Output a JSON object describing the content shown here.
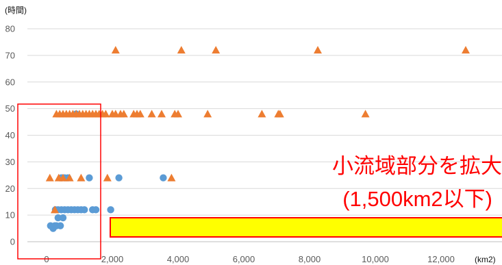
{
  "chart_data": {
    "type": "scatter",
    "y_unit_label": "(時間)",
    "x_unit_label": "(km2)",
    "xlim": [
      0,
      14000
    ],
    "ylim": [
      0,
      80
    ],
    "x_ticks": [
      "0",
      "2,000",
      "4,000",
      "6,000",
      "8,000",
      "10,000",
      "12,000"
    ],
    "y_ticks": [
      "0",
      "10",
      "20",
      "30",
      "40",
      "50",
      "60",
      "70",
      "80"
    ],
    "grid": true,
    "series": [
      {
        "marker": "circle",
        "color": "#5b9bd5",
        "points": [
          [
            120,
            6
          ],
          [
            200,
            5
          ],
          [
            250,
            6
          ],
          [
            300,
            6
          ],
          [
            350,
            9
          ],
          [
            420,
            6
          ],
          [
            500,
            9
          ],
          [
            270,
            12
          ],
          [
            350,
            12
          ],
          [
            450,
            12
          ],
          [
            550,
            12
          ],
          [
            650,
            12
          ],
          [
            750,
            12
          ],
          [
            850,
            12
          ],
          [
            950,
            12
          ],
          [
            1050,
            12
          ],
          [
            1150,
            12
          ],
          [
            1400,
            12
          ],
          [
            1500,
            12
          ],
          [
            1950,
            12
          ],
          [
            450,
            24
          ],
          [
            550,
            24
          ],
          [
            650,
            24
          ],
          [
            1300,
            24
          ],
          [
            2200,
            24
          ],
          [
            3550,
            24
          ],
          [
            900,
            48
          ]
        ]
      },
      {
        "marker": "triangle",
        "color": "#ed7d31",
        "points": [
          [
            100,
            24
          ],
          [
            250,
            12
          ],
          [
            370,
            24
          ],
          [
            500,
            24
          ],
          [
            700,
            24
          ],
          [
            1050,
            24
          ],
          [
            1850,
            24
          ],
          [
            3800,
            24
          ],
          [
            300,
            48
          ],
          [
            400,
            48
          ],
          [
            500,
            48
          ],
          [
            600,
            48
          ],
          [
            700,
            48
          ],
          [
            800,
            48
          ],
          [
            900,
            48
          ],
          [
            1000,
            48
          ],
          [
            1100,
            48
          ],
          [
            1200,
            48
          ],
          [
            1300,
            48
          ],
          [
            1400,
            48
          ],
          [
            1500,
            48
          ],
          [
            1600,
            48
          ],
          [
            1700,
            48
          ],
          [
            1800,
            48
          ],
          [
            2000,
            48
          ],
          [
            2100,
            48
          ],
          [
            2250,
            48
          ],
          [
            2350,
            48
          ],
          [
            2650,
            48
          ],
          [
            2750,
            48
          ],
          [
            2850,
            48
          ],
          [
            3200,
            48
          ],
          [
            3500,
            48
          ],
          [
            3900,
            48
          ],
          [
            4000,
            48
          ],
          [
            4900,
            48
          ],
          [
            6550,
            48
          ],
          [
            7050,
            48
          ],
          [
            7100,
            48
          ],
          [
            9700,
            48
          ],
          [
            2100,
            72
          ],
          [
            4100,
            72
          ],
          [
            5150,
            72
          ],
          [
            8250,
            72
          ],
          [
            12750,
            72
          ]
        ]
      }
    ]
  },
  "annotation": {
    "line1": "小流域部分を拡大",
    "line2": "(1,500km2以下)",
    "text_color": "#ff0000",
    "box_fill": "#ffff00",
    "box_border": "#ff0000"
  }
}
